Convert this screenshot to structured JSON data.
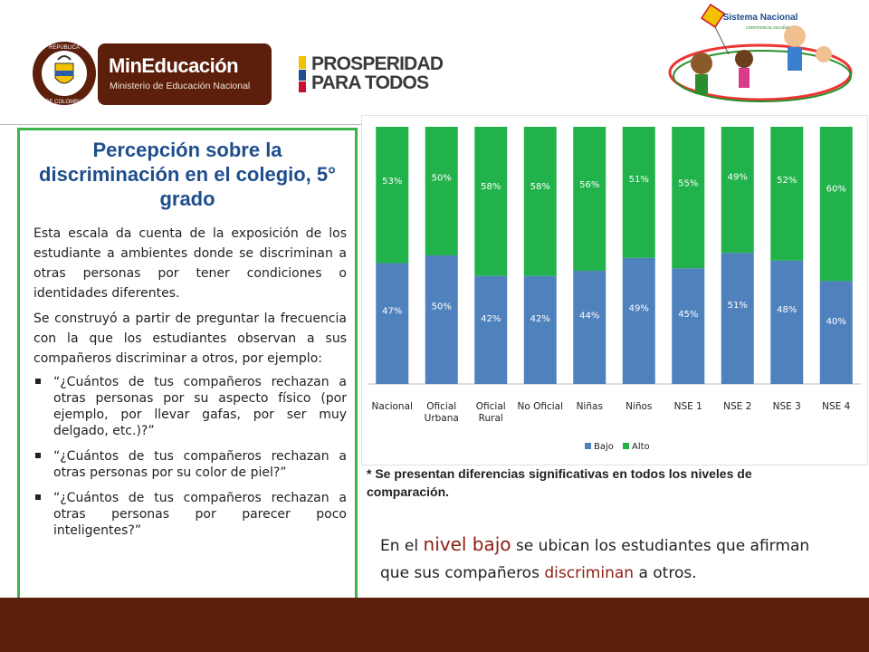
{
  "header": {
    "seal_text_top": "REPÚBLICA",
    "seal_text_bottom": "DE COLOMBIA",
    "min_logo_title": "MinEducación",
    "min_logo_subtitle": "Ministerio de Educación Nacional",
    "prosperidad_line1": "PROSPERIDAD",
    "prosperidad_line2": "PARA TODOS",
    "sistema_title": "Sistema Nacional",
    "sistema_subtitle": "convivencia escolar",
    "colors": {
      "brand_brown": "#5b1f0c",
      "panel_green": "#3cb44b"
    }
  },
  "left_panel": {
    "title": "Percepción sobre la discriminación en el colegio, 5° grado",
    "paragraph1": "Esta escala da cuenta de la exposición de los estudiante a ambientes donde se discriminan a otras personas por tener condiciones o identidades diferentes.",
    "paragraph2": "Se construyó a partir de preguntar la frecuencia con la que los estudiantes observan a sus compañeros  discriminar a otros, por ejemplo:",
    "bullets": [
      "“¿Cuántos de tus compañeros rechazan a otras personas por su aspecto físico (por ejemplo, por llevar gafas, por ser muy delgado, etc.)?”",
      "“¿Cuántos de tus compañeros rechazan a otras personas por su color de piel?”",
      "“¿Cuántos de tus compañeros rechazan a otras personas por parecer poco inteligentes?”"
    ]
  },
  "chart_data": {
    "type": "bar",
    "stacked": true,
    "percent": true,
    "categories": [
      "Nacional",
      "Oficial Urbana",
      "Oficial Rural",
      "No Oficial",
      "Niñas",
      "Niños",
      "NSE 1",
      "NSE 2",
      "NSE 3",
      "NSE 4"
    ],
    "category_lines": [
      [
        "Nacional"
      ],
      [
        "Oficial",
        "Urbana"
      ],
      [
        "Oficial",
        "Rural"
      ],
      [
        "No Oficial"
      ],
      [
        "Niñas"
      ],
      [
        "Niños"
      ],
      [
        "NSE 1"
      ],
      [
        "NSE 2"
      ],
      [
        "NSE 3"
      ],
      [
        "NSE 4"
      ]
    ],
    "series": [
      {
        "name": "Bajo",
        "color": "#4f81bd",
        "values": [
          47,
          50,
          42,
          42,
          44,
          49,
          45,
          51,
          48,
          40
        ],
        "labels": [
          "47%",
          "50%",
          "42%",
          "42%",
          "44%",
          "49%",
          "45%",
          "51%",
          "48%",
          "40%"
        ]
      },
      {
        "name": "Alto",
        "color": "#21b24b",
        "values": [
          53,
          50,
          58,
          58,
          56,
          51,
          55,
          49,
          52,
          60
        ],
        "labels": [
          "53%",
          "50%",
          "58%",
          "58%",
          "56%",
          "51%",
          "55%",
          "49%",
          "52%",
          "60%"
        ]
      }
    ],
    "ylim": [
      0,
      100
    ],
    "legend_position": "bottom",
    "grid": false
  },
  "notes": {
    "significance": "* Se presentan diferencias significativas en todos los niveles de comparación.",
    "level_prefix": "En el ",
    "level_highlight": "nivel bajo",
    "level_mid": " se ubican los estudiantes que afirman que sus compañeros ",
    "level_highlight2": "discriminan",
    "level_suffix": " a otros."
  }
}
